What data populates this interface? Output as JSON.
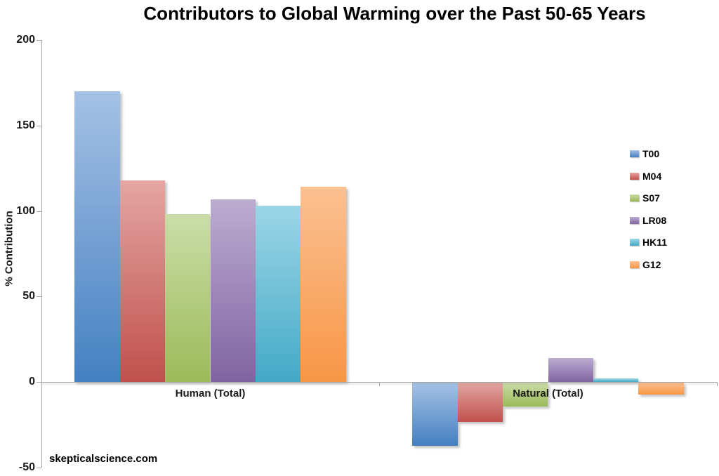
{
  "title": "Contributors to Global Warming over the Past 50-65 Years",
  "watermark": "skepticalscience.com",
  "colors": {
    "axis": "#A6A6A6",
    "text": "#1A1A1A"
  },
  "chart_data": {
    "type": "bar",
    "title": "Contributors to Global Warming over the Past 50-65 Years",
    "xlabel": "",
    "ylabel": "% Contribution",
    "categories": [
      "Human (Total)",
      "Natural (Total)"
    ],
    "series": [
      {
        "name": "T00",
        "values": [
          170,
          -37
        ],
        "color_light": "#A5C1E5",
        "color_dark": "#4480C2"
      },
      {
        "name": "M04",
        "values": [
          118,
          -23
        ],
        "color_light": "#E4A6A3",
        "color_dark": "#C0504D"
      },
      {
        "name": "S07",
        "values": [
          98,
          -14
        ],
        "color_light": "#CBDDA8",
        "color_dark": "#9BBB59"
      },
      {
        "name": "LR08",
        "values": [
          107,
          14
        ],
        "color_light": "#BCACD0",
        "color_dark": "#8064A2"
      },
      {
        "name": "HK11",
        "values": [
          103,
          2
        ],
        "color_light": "#9CD6E6",
        "color_dark": "#43A9C7"
      },
      {
        "name": "G12",
        "values": [
          114,
          -7
        ],
        "color_light": "#FBC091",
        "color_dark": "#F79646"
      }
    ],
    "ylim": [
      -50,
      200
    ],
    "yticks": [
      200,
      150,
      100,
      50,
      0,
      -50
    ],
    "ytick_interval": 50,
    "grid": false,
    "legend_position": "right"
  }
}
